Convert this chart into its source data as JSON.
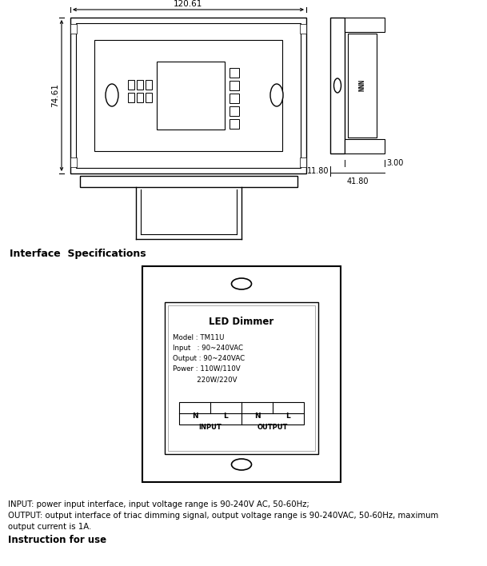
{
  "bg_color": "#ffffff",
  "line_color": "#000000",
  "title_interface": "Interface  Specifications",
  "label_120_61": "120.61",
  "label_74_61": "74.61",
  "label_3_00": "3.00",
  "label_11_80": "11.80",
  "label_41_80": "41.80",
  "led_dimmer_title": "LED Dimmer",
  "spec_model": "Model : TM11U",
  "spec_input": "Input   : 90~240VAC",
  "spec_output": "Output : 90~240VAC",
  "spec_power1": "Power : 110W/110V",
  "spec_power2": "           220W/220V",
  "input_label": "INPUT",
  "output_label": "OUTPUT",
  "terminal_N1": "N",
  "terminal_L1": "L",
  "terminal_N2": "N",
  "terminal_L2": "L",
  "footer_line1": "INPUT: power input interface, input voltage range is 90-240V AC, 50-60Hz;",
  "footer_line2": "OUTPUT: output interface of triac dimming signal, output voltage range is 90-240VAC, 50-60Hz, maximum",
  "footer_line3": "output current is 1A.",
  "footer_bold": "Instruction for use"
}
